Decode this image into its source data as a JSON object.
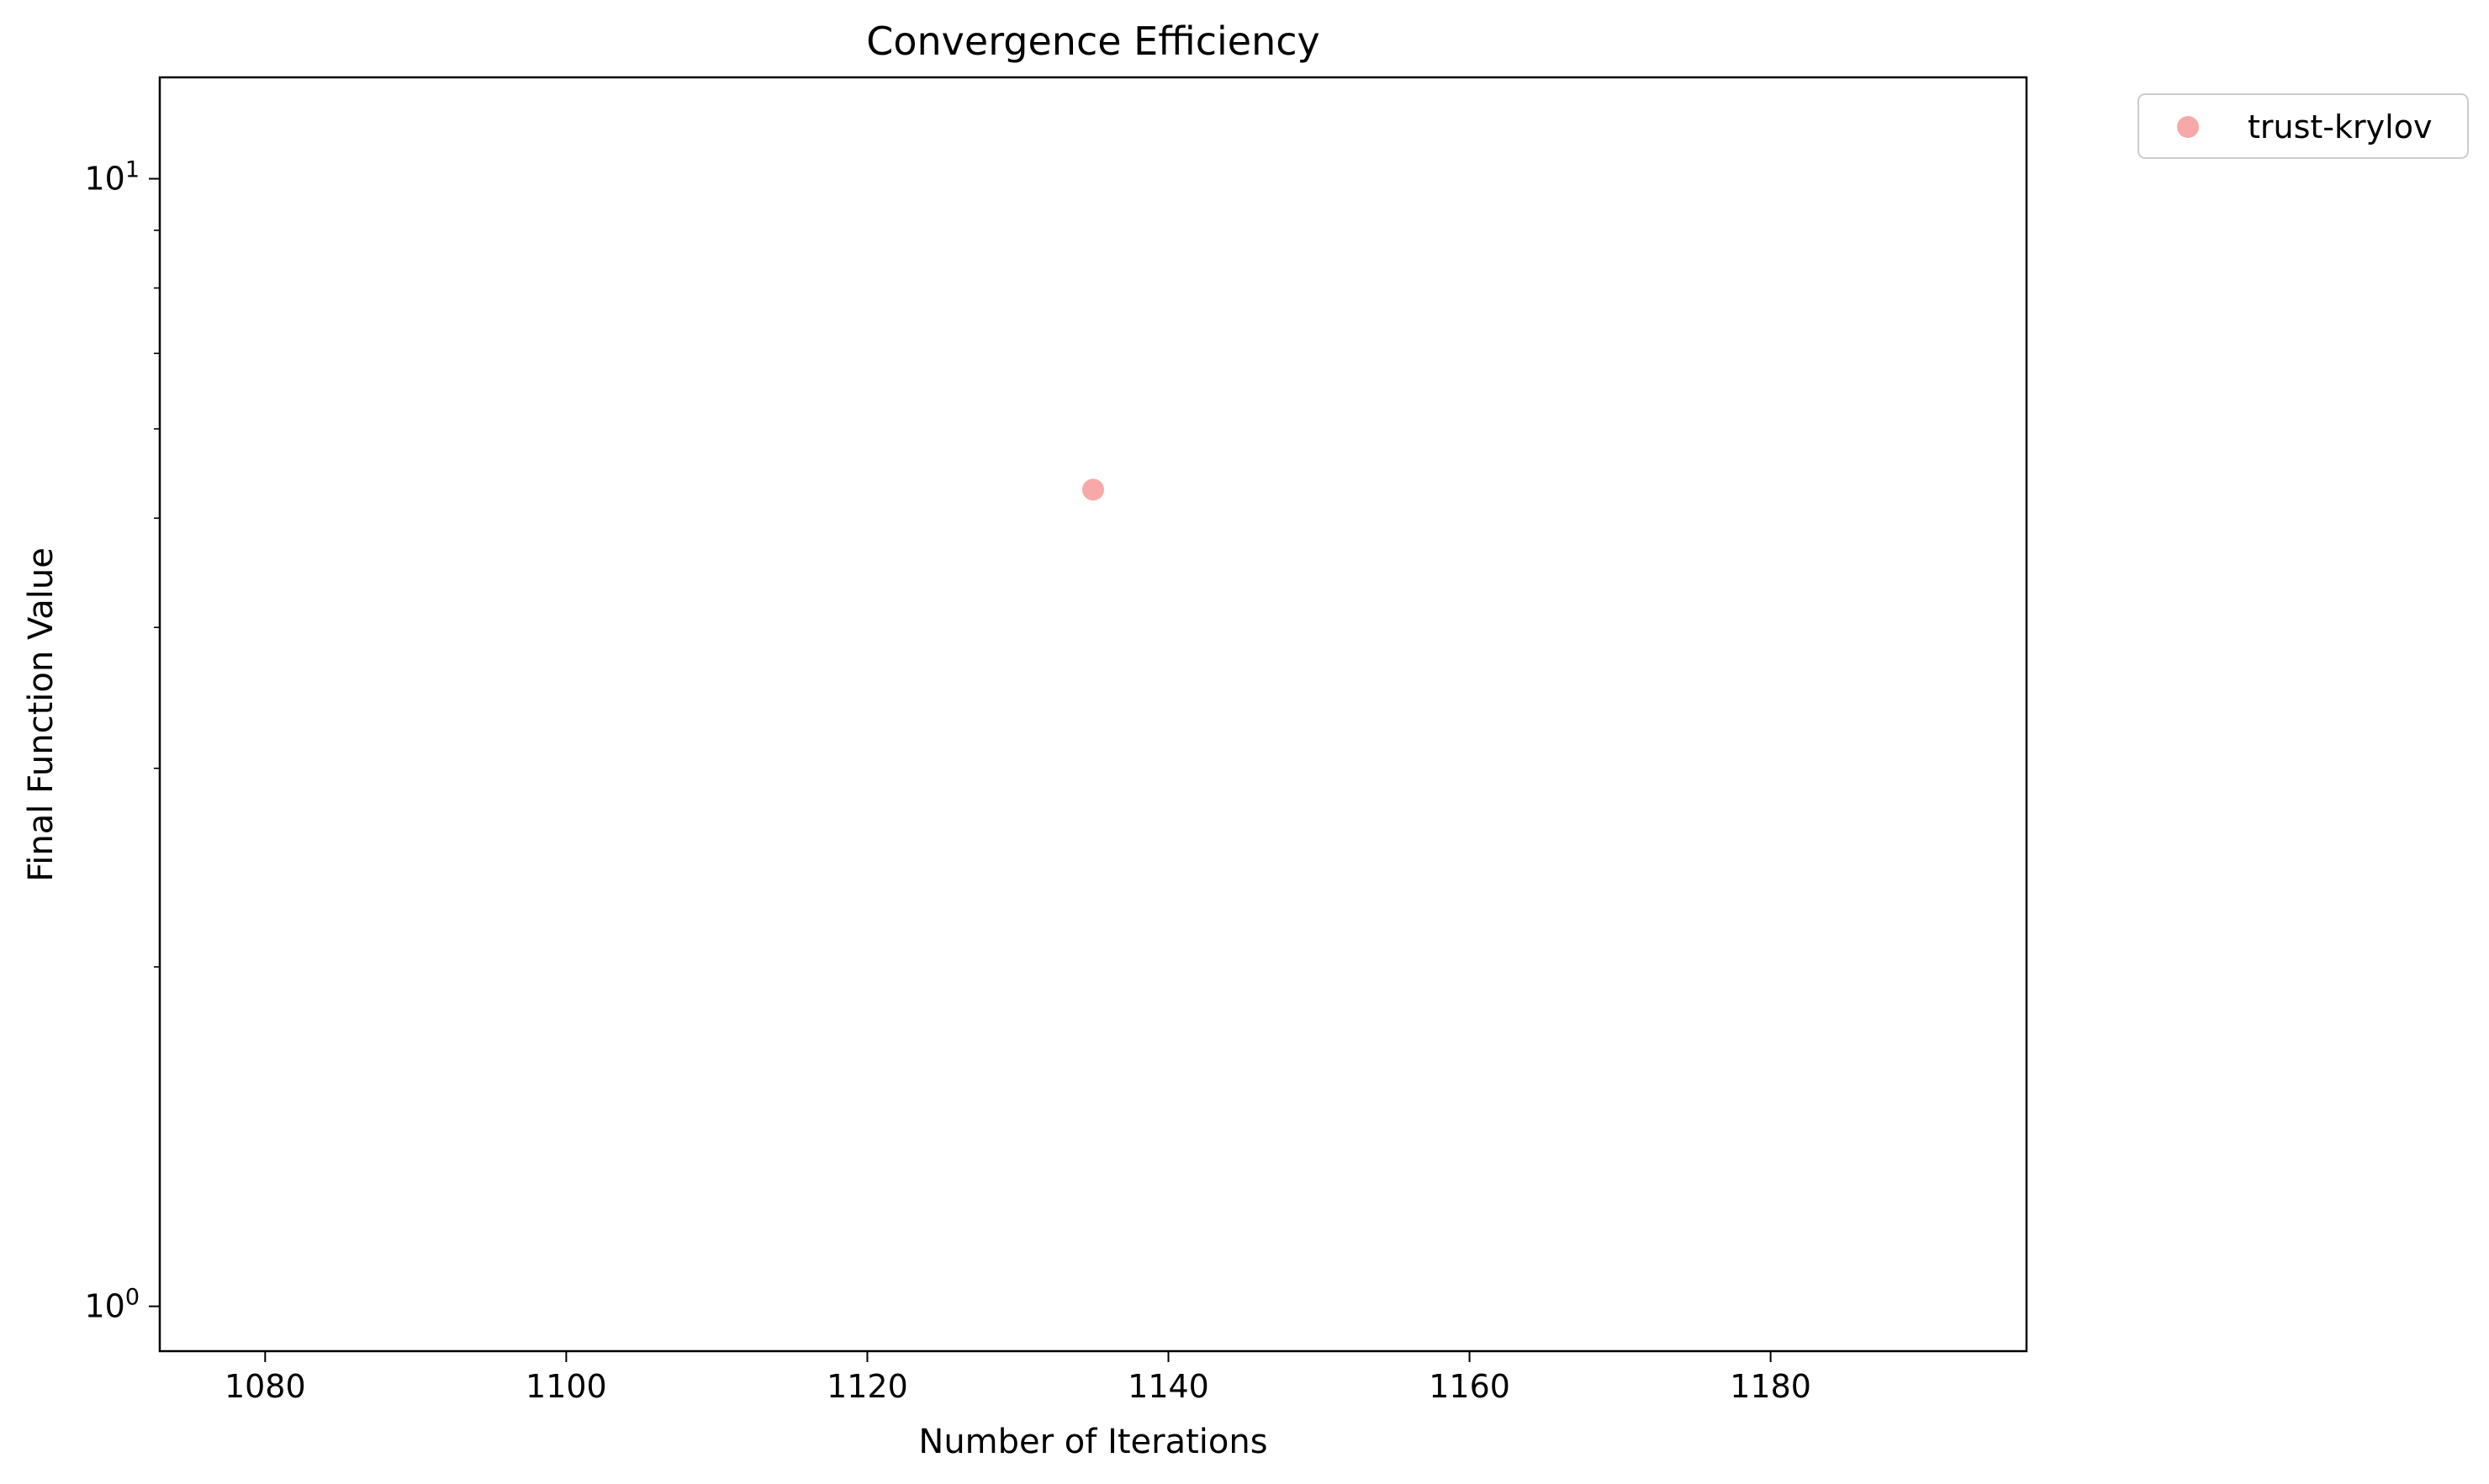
{
  "chart_data": {
    "type": "scatter",
    "title": "Convergence Efficiency",
    "xlabel": "Number of Iterations",
    "ylabel": "Final Function Value",
    "xlim": [
      1073,
      1197
    ],
    "ylim": [
      0.9125,
      12.3
    ],
    "yscale": "log",
    "grid": false,
    "legend_position": "outside-top-right",
    "x_ticks": [
      {
        "value": 1080,
        "label": "1080"
      },
      {
        "value": 1100,
        "label": "1100"
      },
      {
        "value": 1120,
        "label": "1120"
      },
      {
        "value": 1140,
        "label": "1140"
      },
      {
        "value": 1160,
        "label": "1160"
      },
      {
        "value": 1180,
        "label": "1180"
      }
    ],
    "y_major_ticks": [
      {
        "value": 1,
        "base": "10",
        "exp": "0"
      },
      {
        "value": 10,
        "base": "10",
        "exp": "1"
      }
    ],
    "y_minor_ticks": [
      2,
      3,
      4,
      5,
      6,
      7,
      8,
      9
    ],
    "series": [
      {
        "name": "trust-krylov",
        "color": "#f7a8a8",
        "points": [
          {
            "x": 1135,
            "y": 5.3
          }
        ]
      }
    ]
  }
}
